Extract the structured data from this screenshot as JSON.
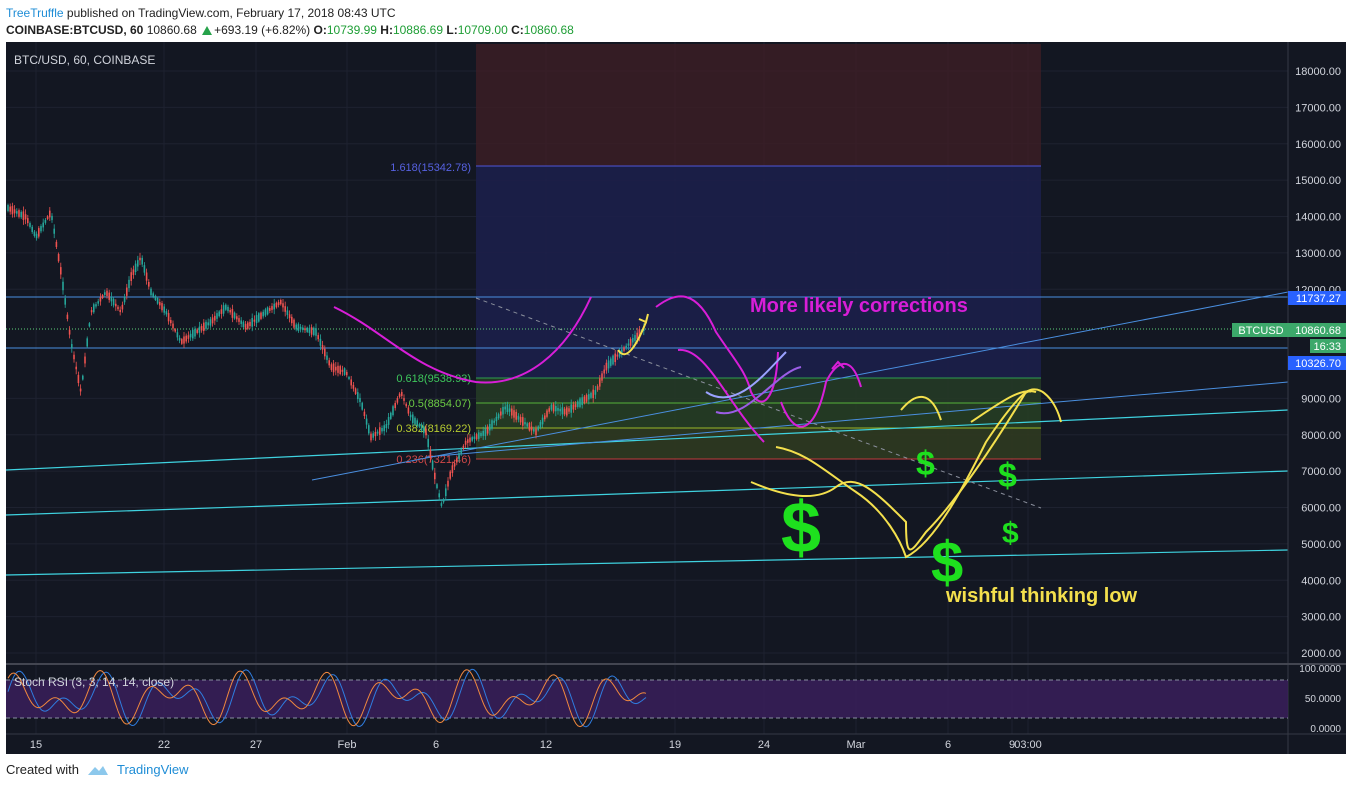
{
  "header": {
    "author": "TreeTruffle",
    "published": " published on TradingView.com, February 17, 2018 08:43 UTC"
  },
  "quote": {
    "symbol": "COINBASE:BTCUSD, 60",
    "price": "10860.68",
    "change": "+693.19 (+6.82%)",
    "o_label": "O:",
    "o": "10739.99",
    "h_label": "H:",
    "h": "10886.69",
    "l_label": "L:",
    "l": "10709.00",
    "c_label": "C:",
    "c": "10860.68"
  },
  "chart": {
    "legend": "BTC/USD, 60, COINBASE",
    "price_axis": [
      "18000.00",
      "17000.00",
      "16000.00",
      "15000.00",
      "14000.00",
      "13000.00",
      "12000.00",
      "9000.00",
      "8000.00",
      "7000.00",
      "6000.00",
      "5000.00",
      "4000.00",
      "3000.00",
      "2000.00"
    ],
    "time_axis": [
      "15",
      "22",
      "27",
      "Feb",
      "6",
      "12",
      "19",
      "24",
      "Mar",
      "6",
      "9",
      "03:00"
    ],
    "tags": {
      "level_upper": "11737.27",
      "symbol": "BTCUSD",
      "last": "10860.68",
      "countdown": "16:33",
      "level_lower": "10326.70"
    },
    "fib_levels": [
      "1.618(15342.78)",
      "0.618(9538.93)",
      "0.5(8854.07)",
      "0.382(8169.22)",
      "0.236(7321.46)"
    ],
    "annotations": {
      "corrections": "More likely corrections",
      "wishful": "wishful thinking low",
      "dollar": "$"
    },
    "colors": {
      "up": "#26a69a",
      "down": "#ef5350",
      "magenta": "#d81ed8",
      "yellow": "#f4e04d",
      "green": "#1ee01e",
      "cyan": "#3fd3e0",
      "blue": "#4a8fe0"
    }
  },
  "rsi": {
    "label": "Stoch RSI (3, 3, 14, 14, close)",
    "axis": [
      "100.0000",
      "50.0000",
      "0.0000"
    ]
  },
  "footer": {
    "created_with": "Created with",
    "brand": "TradingView"
  }
}
